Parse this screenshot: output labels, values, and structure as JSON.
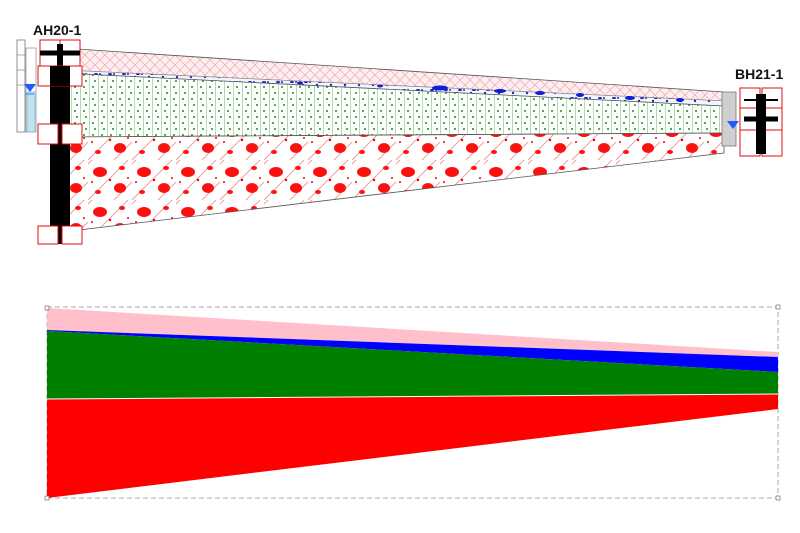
{
  "boreholes": [
    {
      "id": "left",
      "label": "AH20-1"
    },
    {
      "id": "right",
      "label": "BH21-1"
    }
  ],
  "layers": [
    {
      "key": "topsoil",
      "pattern": "crosshatch-pink",
      "color": "#f6c9cf"
    },
    {
      "key": "groundwater",
      "pattern": "blue-specks",
      "color": "#0a1fd6"
    },
    {
      "key": "silt",
      "pattern": "green-dots",
      "color": "#1e8a1e"
    },
    {
      "key": "gravel",
      "pattern": "red-blobs",
      "color": "#ff0000"
    }
  ],
  "simplified_colors": {
    "pink": "#ffc0cb",
    "blue": "#0000ff",
    "green": "#008000",
    "red": "#ff0000"
  }
}
